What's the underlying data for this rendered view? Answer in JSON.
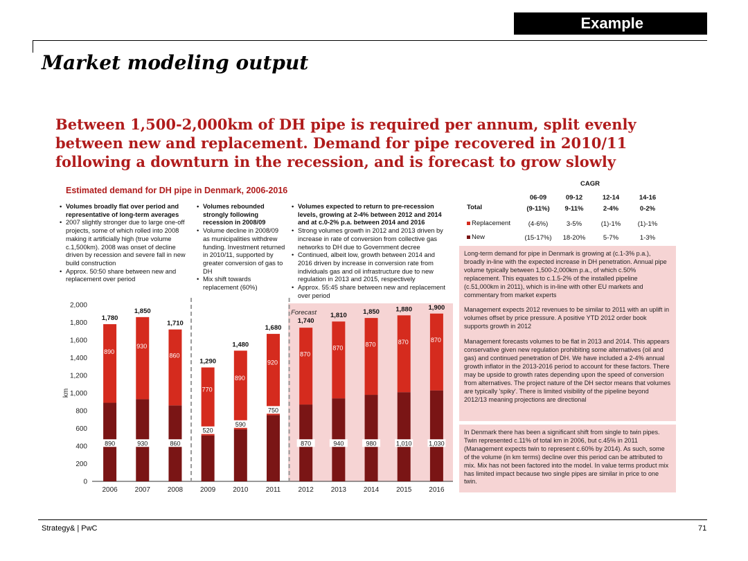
{
  "example_label": "Example",
  "page_title": "Market modeling output",
  "headline": "Between 1,500-2,000km of DH pipe is required per annum, split evenly between new and replacement. Demand for pipe recovered in 2010/11 following a downturn in the recession, and is forecast to grow slowly",
  "chart_title": "Estimated demand for DH pipe in Denmark, 2006-2016",
  "columns": [
    {
      "items": [
        {
          "bold": true,
          "text": "Volumes broadly flat over period and representative of long-term averages"
        },
        {
          "bold": false,
          "text": "2007 slightly stronger due to large one-off projects, some of which rolled into 2008 making it artificially high (true volume c.1,500km). 2008 was onset of decline driven by recession and severe fall in new build construction"
        },
        {
          "bold": false,
          "text": "Approx. 50:50 share between new and replacement over period"
        }
      ]
    },
    {
      "items": [
        {
          "bold": true,
          "text": "Volumes rebounded strongly following recession in 2008/09"
        },
        {
          "bold": false,
          "text": "Volume decline in 2008/09 as municipalities withdrew funding. Investment returned in 2010/11, supported by greater conversion of gas to DH"
        },
        {
          "bold": false,
          "text": "Mix shift towards replacement (60%)"
        }
      ]
    },
    {
      "items": [
        {
          "bold": true,
          "text": "Volumes expected to return to pre-recession levels, growing at 2-4% between 2012 and 2014 and at c.0-2% p.a. between 2014 and 2016"
        },
        {
          "bold": false,
          "text": "Strong volumes growth in 2012 and 2013 driven by increase in rate of conversion from collective gas networks to DH due to Government decree"
        },
        {
          "bold": false,
          "text": "Continued, albeit low, growth between 2014 and 2016 driven by increase in conversion rate from individuals gas and oil infrastructure due to new regulation in 2013 and 2015, respectively"
        },
        {
          "bold": false,
          "text": "Approx. 55:45 share between new and replacement over period"
        }
      ]
    }
  ],
  "cagr": {
    "title": "CAGR",
    "periods": [
      "06-09",
      "09-12",
      "12-14",
      "14-16"
    ],
    "rows": [
      {
        "label": "Total",
        "values": [
          "(9-11%)",
          "9-11%",
          "2-4%",
          "0-2%"
        ]
      },
      {
        "label": "Replacement",
        "values": [
          "(4-6%)",
          "3-5%",
          "(1)-1%",
          "(1)-1%"
        ]
      },
      {
        "label": "New",
        "values": [
          "(15-17%)",
          "18-20%",
          "5-7%",
          "1-3%"
        ]
      }
    ]
  },
  "notes": [
    "Long-term demand for pipe in Denmark is growing at (c.1-3% p.a.), broadly in-line with the expected increase in DH penetration. Annual pipe volume typically between 1,500-2,000km p.a., of which c.50% replacement. This equates to c.1.5-2% of the installed pipeline (c.51,000km in 2011), which is in-line with other EU markets and commentary from market experts",
    "Management expects 2012 revenues to be similar to 2011 with an uplift in volumes offset by price pressure. A positive YTD 2012 order book supports growth in 2012",
    "Management forecasts volumes to be flat in 2013 and 2014. This appears conservative given new regulation prohibiting some alternatives (oil and gas) and continued penetration of DH. We have included a 2-4% annual growth inflator in the 2013-2016 period to account for these factors. There may be upside to growth rates depending upon the speed of conversion from alternatives. The project nature of the DH sector means that volumes are typically 'spiky'. There is limited visibility of the pipeline beyond 2012/13 meaning projections are directional",
    "In Denmark there has been a significant shift from single to twin pipes. Twin represented c.11% of total km in 2006, but c.45% in 2011 (Management expects twin to represent c.60% by 2014). As such, some of the volume (in km terms) decline over this period can be attributed to mix. Mix has not been factored into the model. In value terms product mix has limited impact because two single pipes are similar in price to one twin."
  ],
  "chart_data": {
    "type": "bar",
    "stacked": true,
    "title": "Estimated demand for DH pipe in Denmark, 2006-2016",
    "categories": [
      "2006",
      "2007",
      "2008",
      "2009",
      "2010",
      "2011",
      "2012",
      "2013",
      "2014",
      "2015",
      "2016"
    ],
    "series": [
      {
        "name": "New",
        "color": "#7a1515",
        "values": [
          890,
          930,
          860,
          520,
          590,
          750,
          870,
          940,
          980,
          1010,
          1030
        ]
      },
      {
        "name": "Replacement",
        "color": "#d52b1e",
        "values": [
          890,
          930,
          860,
          770,
          890,
          920,
          870,
          870,
          870,
          870,
          870
        ]
      }
    ],
    "totals": [
      "1,780",
      "1,850",
      "1,710",
      "1,290",
      "1,480",
      "1,680",
      "1,740",
      "1,810",
      "1,850",
      "1,880",
      "1,900"
    ],
    "new_labels": [
      "890",
      "930",
      "860",
      "520",
      "590",
      "750",
      "870",
      "940",
      "980",
      "1,010",
      "1,030"
    ],
    "repl_labels": [
      "890",
      "930",
      "860",
      "770",
      "890",
      "920",
      "870",
      "870",
      "870",
      "870",
      "870"
    ],
    "ylabel": "km",
    "ylim": [
      0,
      2000
    ],
    "yticks": [
      "0",
      "200",
      "400",
      "600",
      "800",
      "1,000",
      "1,200",
      "1,400",
      "1,600",
      "1,800",
      "2,000"
    ],
    "forecast_label": "Forecast",
    "forecast_start_index": 6
  },
  "footer": {
    "source": "Strategy& | PwC",
    "page": "71"
  }
}
